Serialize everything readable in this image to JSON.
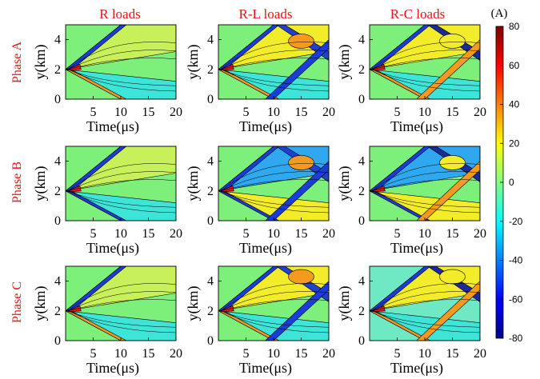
{
  "chart_data": {
    "type": "heatmap",
    "plot_kind": "filled contour grid (3 x 3)",
    "column_titles": [
      "R loads",
      "R-L loads",
      "R-C loads"
    ],
    "row_titles": [
      "Phase A",
      "Phase B",
      "Phase C"
    ],
    "xlabel": "Time(μs)",
    "ylabel": "y(km)",
    "xlim": [
      0,
      20
    ],
    "ylim": [
      0,
      5
    ],
    "xticks": [
      "5",
      "10",
      "15",
      "20"
    ],
    "yticks": [
      "0",
      "2",
      "4"
    ],
    "colorbar": {
      "unit_label": "(A)",
      "range": [
        -80,
        80
      ],
      "ticks": [
        "80",
        "60",
        "40",
        "20",
        "0",
        "-20",
        "-40",
        "-60",
        "-80"
      ],
      "colormap": "jet"
    },
    "title_color": "#e8141a"
  }
}
